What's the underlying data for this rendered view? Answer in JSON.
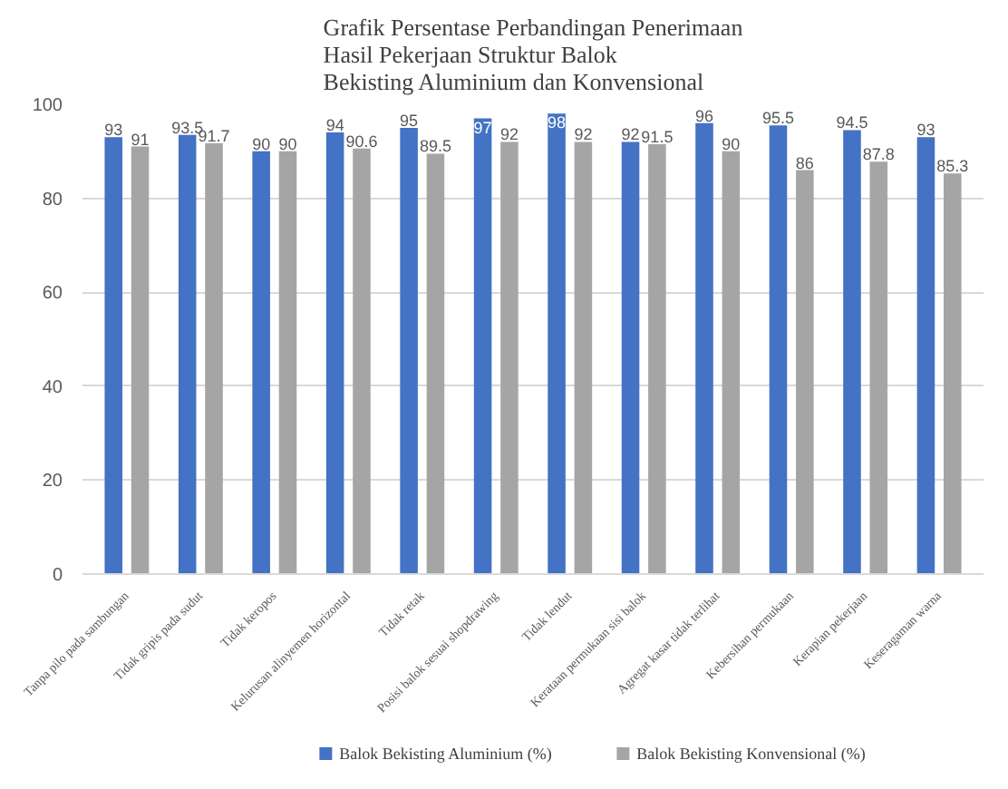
{
  "chart_data": {
    "type": "bar",
    "title": "Grafik Persentase Perbandingan Penerimaan\nHasil Pekerjaan Struktur Balok\nBekisting Aluminium dan Konvensional",
    "categories": [
      "Tanpa pilo pada sambungan",
      "Tidak gripis pada sudut",
      "Tidak keropos",
      "Kelurusan alinyemen horizontal",
      "Tidak retak",
      "Posisi balok sesuai shopdrawing",
      "Tidak lendut",
      "Kerataan permukaan sisi balok",
      "Agregat kasar tidak terlihat",
      "Kebersihan permukaan",
      "Kerapian pekerjaan",
      "Keseragaman warna"
    ],
    "series": [
      {
        "name": "Balok Bekisting Aluminium (%)",
        "color": "#4472c4",
        "values": [
          93,
          93.5,
          90,
          94,
          95,
          97,
          98,
          92,
          96,
          95.5,
          94.5,
          93
        ]
      },
      {
        "name": "Balok Bekisting Konvensional (%)",
        "color": "#a5a5a5",
        "values": [
          91,
          91.7,
          90,
          90.6,
          89.5,
          92,
          92,
          91.5,
          90,
          86,
          87.8,
          85.3
        ]
      }
    ],
    "ylim": [
      0,
      100
    ],
    "yticks": [
      0,
      20,
      40,
      60,
      80,
      100
    ],
    "grid": "y",
    "legend": "bottom",
    "data_labels": true
  }
}
